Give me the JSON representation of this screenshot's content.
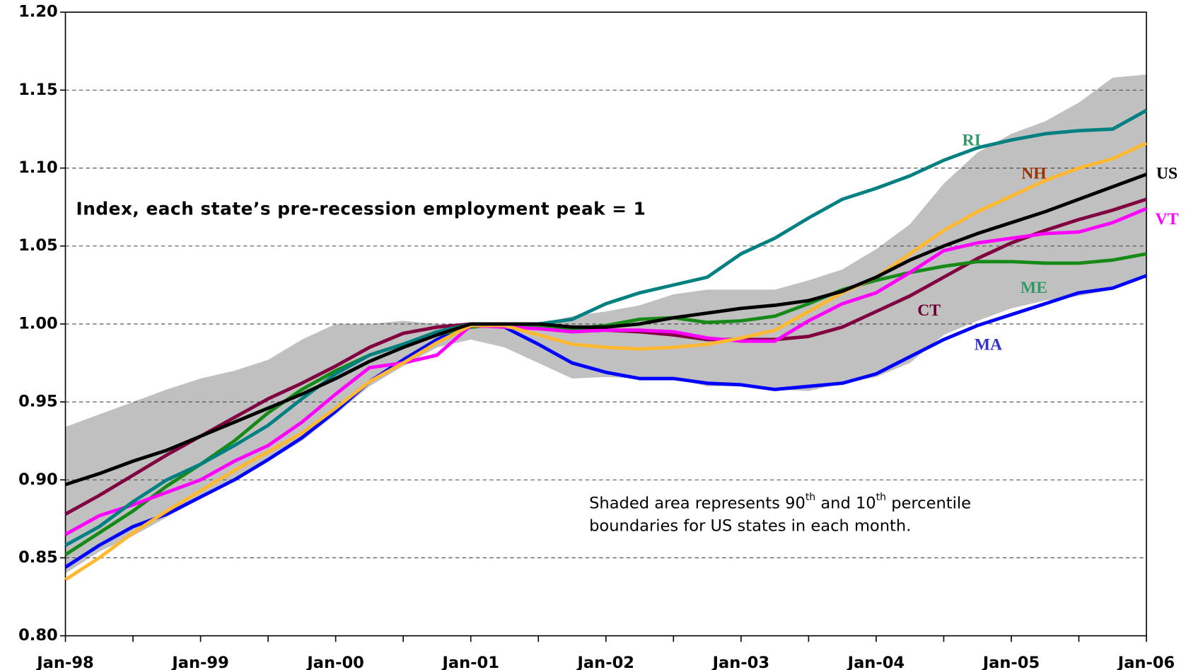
{
  "chart_data": {
    "type": "line",
    "annotation": "Index, each state’s pre-recession employment peak = 1",
    "note": {
      "line1": [
        "Shaded area represents 90",
        "th",
        " and 10",
        "th",
        " percentile"
      ],
      "line2": "boundaries for US states in each month."
    },
    "categories": [
      "Jan-98",
      null,
      null,
      null,
      "Jan-99",
      null,
      null,
      null,
      "Jan-00",
      null,
      null,
      null,
      "Jan-01",
      null,
      null,
      null,
      "Jan-02",
      null,
      null,
      null,
      "Jan-03",
      null,
      null,
      null,
      "Jan-04",
      null,
      null,
      null,
      "Jan-05",
      null,
      null,
      null,
      "Jan-06"
    ],
    "ylim": [
      0.8,
      1.2
    ],
    "yticks": [
      {
        "value": 0.8,
        "label": "0.80"
      },
      0.85,
      {
        "value": 0.9,
        "label": "0.90"
      },
      0.95,
      {
        "value": 1.0,
        "label": "1.00"
      },
      1.05,
      {
        "value": 1.1,
        "label": "1.10"
      },
      1.15,
      {
        "value": 1.2,
        "label": "1.20"
      }
    ],
    "grid": true,
    "band": {
      "color": "#c0c0c0",
      "upper": [
        0.934,
        0.942,
        0.95,
        0.958,
        0.965,
        0.97,
        0.977,
        0.99,
        1.0,
        1.0,
        1.002,
        1.0,
        1.0,
        0.999,
        1.0,
        1.005,
        1.008,
        1.012,
        1.019,
        1.022,
        1.022,
        1.022,
        1.028,
        1.035,
        1.048,
        1.064,
        1.09,
        1.11,
        1.122,
        1.13,
        1.142,
        1.158,
        1.16
      ],
      "lower": [
        0.84,
        0.854,
        0.864,
        0.876,
        0.888,
        0.9,
        0.912,
        0.925,
        0.942,
        0.96,
        0.973,
        0.985,
        0.99,
        0.985,
        0.975,
        0.965,
        0.966,
        0.965,
        0.965,
        0.96,
        0.96,
        0.958,
        0.957,
        0.962,
        0.966,
        0.975,
        0.993,
        1.002,
        1.01,
        1.015,
        1.018,
        1.022,
        1.03
      ]
    },
    "series": [
      {
        "name": "US",
        "color": "#000000",
        "label_color": "#000000",
        "values": [
          0.897,
          0.904,
          0.912,
          0.919,
          0.928,
          0.937,
          0.946,
          0.955,
          0.965,
          0.976,
          0.985,
          0.993,
          1.0,
          1.0,
          1.0,
          0.998,
          0.998,
          1.0,
          1.004,
          1.007,
          1.01,
          1.012,
          1.015,
          1.021,
          1.03,
          1.041,
          1.05,
          1.058,
          1.065,
          1.072,
          1.08,
          1.088,
          1.096
        ]
      },
      {
        "name": "RI",
        "color": "#008080",
        "label_color": "#339966",
        "values": [
          0.858,
          0.87,
          0.886,
          0.9,
          0.91,
          0.922,
          0.935,
          0.952,
          0.968,
          0.98,
          0.987,
          0.995,
          1.0,
          1.0,
          1.0,
          1.003,
          1.013,
          1.02,
          1.025,
          1.03,
          1.045,
          1.055,
          1.068,
          1.08,
          1.087,
          1.095,
          1.105,
          1.113,
          1.118,
          1.122,
          1.124,
          1.125,
          1.137
        ]
      },
      {
        "name": "NH",
        "color": "#ffb830",
        "label_color": "#993300",
        "values": [
          0.836,
          0.85,
          0.866,
          0.88,
          0.893,
          0.906,
          0.918,
          0.93,
          0.946,
          0.963,
          0.975,
          0.988,
          0.999,
          0.999,
          0.993,
          0.987,
          0.985,
          0.984,
          0.985,
          0.987,
          0.991,
          0.996,
          1.008,
          1.02,
          1.03,
          1.045,
          1.06,
          1.072,
          1.082,
          1.092,
          1.1,
          1.106,
          1.116
        ]
      },
      {
        "name": "VT",
        "color": "#ff00ff",
        "label_color": "#ff00ff",
        "values": [
          0.865,
          0.877,
          0.884,
          0.892,
          0.9,
          0.912,
          0.922,
          0.937,
          0.955,
          0.972,
          0.975,
          0.98,
          0.999,
          0.998,
          0.997,
          0.995,
          0.996,
          0.996,
          0.995,
          0.991,
          0.989,
          0.989,
          1.002,
          1.013,
          1.02,
          1.033,
          1.047,
          1.052,
          1.055,
          1.058,
          1.059,
          1.065,
          1.074
        ]
      },
      {
        "name": "ME",
        "color": "#168a16",
        "label_color": "#339966",
        "values": [
          0.852,
          0.866,
          0.88,
          0.896,
          0.91,
          0.925,
          0.943,
          0.958,
          0.97,
          0.98,
          0.987,
          0.993,
          0.998,
          1.0,
          0.998,
          0.997,
          0.999,
          1.003,
          1.004,
          1.001,
          1.002,
          1.005,
          1.013,
          1.022,
          1.028,
          1.033,
          1.037,
          1.04,
          1.04,
          1.039,
          1.039,
          1.041,
          1.045
        ]
      },
      {
        "name": "CT",
        "color": "#800040",
        "label_color": "#660033",
        "values": [
          0.878,
          0.89,
          0.903,
          0.916,
          0.928,
          0.94,
          0.952,
          0.962,
          0.973,
          0.985,
          0.994,
          0.998,
          1.0,
          1.0,
          0.999,
          0.997,
          0.996,
          0.995,
          0.993,
          0.99,
          0.99,
          0.99,
          0.992,
          0.998,
          1.008,
          1.018,
          1.03,
          1.042,
          1.052,
          1.06,
          1.067,
          1.073,
          1.08
        ]
      },
      {
        "name": "MA",
        "color": "#0000ff",
        "label_color": "#3333cc",
        "values": [
          0.844,
          0.858,
          0.87,
          0.878,
          0.889,
          0.9,
          0.913,
          0.927,
          0.944,
          0.963,
          0.977,
          0.99,
          1.0,
          0.998,
          0.987,
          0.975,
          0.969,
          0.965,
          0.965,
          0.962,
          0.961,
          0.958,
          0.96,
          0.962,
          0.968,
          0.979,
          0.99,
          0.999,
          1.006,
          1.013,
          1.02,
          1.023,
          1.031
        ]
      }
    ]
  }
}
